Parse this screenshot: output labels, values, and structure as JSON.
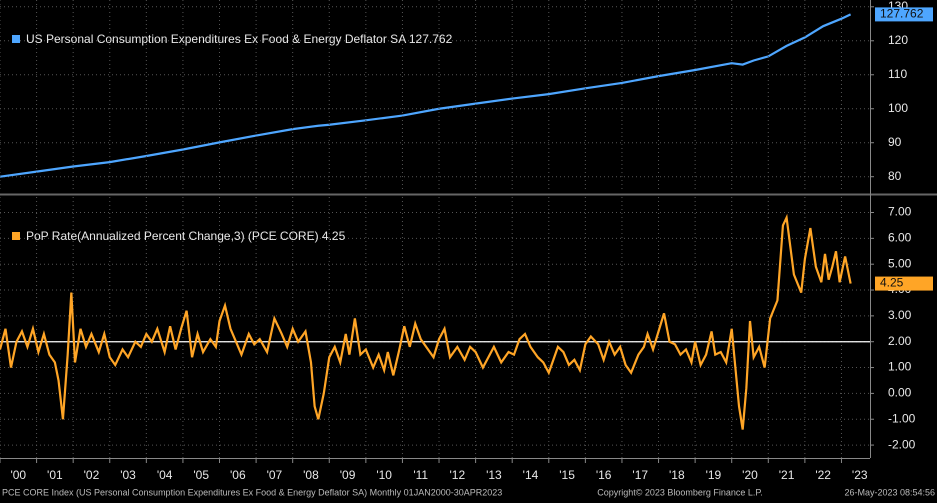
{
  "chart_data": [
    {
      "type": "line",
      "legend": "US Personal Consumption Expenditures Ex Food & Energy Deflator SA 127.762",
      "series": [
        {
          "name": "US Personal Consumption Expenditures Ex Food & Energy Deflator SA",
          "color": "#4ea6ff",
          "x": [
            2000.0,
            2001.0,
            2002.0,
            2003.0,
            2004.0,
            2005.0,
            2006.0,
            2007.0,
            2008.0,
            2008.7,
            2009.0,
            2010.0,
            2011.0,
            2012.0,
            2013.0,
            2014.0,
            2015.0,
            2016.0,
            2017.0,
            2018.0,
            2019.0,
            2020.0,
            2020.3,
            2020.6,
            2021.0,
            2021.5,
            2022.0,
            2022.5,
            2023.0,
            2023.25
          ],
          "values": [
            80.0,
            81.5,
            83.0,
            84.3,
            86.1,
            88.0,
            90.1,
            92.1,
            94.0,
            95.0,
            95.3,
            96.6,
            98.0,
            100.0,
            101.5,
            103.0,
            104.3,
            106.0,
            107.6,
            109.6,
            111.4,
            113.4,
            113.0,
            114.2,
            115.4,
            118.5,
            121.0,
            124.3,
            126.5,
            127.762
          ]
        }
      ],
      "xlim": [
        2000,
        2023.78
      ],
      "ylim": [
        75.5,
        132
      ],
      "yticks": [
        80,
        90,
        100,
        110,
        120,
        130
      ],
      "grid": true
    },
    {
      "type": "line",
      "legend": "PoP Rate(Annualized Percent Change,3) (PCE CORE) 4.25",
      "series": [
        {
          "name": "PoP Rate(Annualized Percent Change,3) (PCE CORE)",
          "color": "#ffa526",
          "x": [
            2000.0,
            2000.15,
            2000.3,
            2000.45,
            2000.6,
            2000.75,
            2000.9,
            2001.05,
            2001.2,
            2001.35,
            2001.5,
            2001.6,
            2001.72,
            2001.85,
            2001.95,
            2002.05,
            2002.2,
            2002.35,
            2002.5,
            2002.7,
            2002.85,
            2003.0,
            2003.15,
            2003.35,
            2003.5,
            2003.7,
            2003.85,
            2004.0,
            2004.15,
            2004.3,
            2004.5,
            2004.65,
            2004.8,
            2004.95,
            2005.1,
            2005.25,
            2005.4,
            2005.55,
            2005.75,
            2005.9,
            2006.0,
            2006.15,
            2006.3,
            2006.45,
            2006.6,
            2006.8,
            2006.95,
            2007.1,
            2007.3,
            2007.5,
            2007.7,
            2007.85,
            2008.0,
            2008.15,
            2008.35,
            2008.5,
            2008.6,
            2008.7,
            2008.85,
            2009.0,
            2009.15,
            2009.3,
            2009.45,
            2009.55,
            2009.7,
            2009.85,
            2010.0,
            2010.2,
            2010.35,
            2010.5,
            2010.6,
            2010.75,
            2010.9,
            2011.05,
            2011.2,
            2011.35,
            2011.5,
            2011.7,
            2011.85,
            2012.0,
            2012.15,
            2012.3,
            2012.5,
            2012.7,
            2012.85,
            2013.0,
            2013.2,
            2013.35,
            2013.5,
            2013.7,
            2013.9,
            2014.05,
            2014.2,
            2014.35,
            2014.5,
            2014.7,
            2014.85,
            2015.0,
            2015.15,
            2015.25,
            2015.4,
            2015.55,
            2015.7,
            2015.85,
            2016.0,
            2016.15,
            2016.35,
            2016.5,
            2016.65,
            2016.8,
            2016.95,
            2017.1,
            2017.25,
            2017.45,
            2017.6,
            2017.7,
            2017.85,
            2018.0,
            2018.15,
            2018.3,
            2018.45,
            2018.6,
            2018.75,
            2018.9,
            2019.0,
            2019.15,
            2019.3,
            2019.45,
            2019.55,
            2019.7,
            2019.85,
            2020.0,
            2020.1,
            2020.2,
            2020.3,
            2020.4,
            2020.5,
            2020.6,
            2020.75,
            2020.9,
            2021.05,
            2021.25,
            2021.4,
            2021.5,
            2021.7,
            2021.9,
            2022.0,
            2022.15,
            2022.3,
            2022.45,
            2022.55,
            2022.65,
            2022.75,
            2022.85,
            2022.95,
            2023.1,
            2023.25
          ],
          "values": [
            1.7,
            2.5,
            1.0,
            2.0,
            2.4,
            1.8,
            2.5,
            1.6,
            2.3,
            1.5,
            1.2,
            0.5,
            -1.0,
            1.5,
            3.9,
            1.2,
            2.5,
            1.8,
            2.3,
            1.6,
            2.3,
            1.4,
            1.1,
            1.7,
            1.4,
            2.0,
            1.8,
            2.3,
            2.0,
            2.5,
            1.6,
            2.6,
            1.7,
            2.5,
            3.2,
            1.4,
            2.3,
            1.6,
            2.1,
            1.8,
            2.8,
            3.4,
            2.5,
            2.0,
            1.5,
            2.3,
            1.9,
            2.1,
            1.6,
            2.9,
            2.3,
            1.8,
            2.5,
            2.0,
            2.4,
            1.2,
            -0.5,
            -1.0,
            0.0,
            1.4,
            1.8,
            1.2,
            2.3,
            1.5,
            2.9,
            1.5,
            1.7,
            1.0,
            1.5,
            0.9,
            1.6,
            0.7,
            1.6,
            2.6,
            1.8,
            2.7,
            2.1,
            1.7,
            1.4,
            2.1,
            2.5,
            1.4,
            1.8,
            1.3,
            1.8,
            1.6,
            1.0,
            1.4,
            1.8,
            1.2,
            1.6,
            1.5,
            2.1,
            2.3,
            1.8,
            1.4,
            1.2,
            0.8,
            1.4,
            1.8,
            1.6,
            1.1,
            1.3,
            0.9,
            1.9,
            2.2,
            1.9,
            1.3,
            2.0,
            1.5,
            1.8,
            1.1,
            0.8,
            1.5,
            1.8,
            2.3,
            1.7,
            2.4,
            3.1,
            2.0,
            1.9,
            1.5,
            1.7,
            1.2,
            2.0,
            1.1,
            1.5,
            2.4,
            1.5,
            1.6,
            1.2,
            2.5,
            1.0,
            -0.5,
            -1.4,
            0.2,
            2.8,
            1.4,
            1.8,
            1.0,
            2.9,
            3.6,
            6.5,
            6.8,
            4.6,
            3.9,
            5.2,
            6.4,
            4.9,
            4.3,
            5.4,
            4.4,
            4.9,
            5.5,
            4.3,
            5.3,
            4.25
          ]
        }
      ],
      "xlim": [
        2000,
        2023.78
      ],
      "ylim": [
        -2.5,
        7.6
      ],
      "yticks": [
        {
          "value": -2,
          "label": "-2.00"
        },
        {
          "value": -1,
          "label": "-1.00"
        },
        {
          "value": 0,
          "label": "0.00"
        },
        {
          "value": 1,
          "label": "1.00"
        },
        {
          "value": 2,
          "label": "2.00"
        },
        {
          "value": 3,
          "label": "3.00"
        },
        {
          "value": 4,
          "label": "4.00"
        },
        {
          "value": 5,
          "label": "5.00"
        },
        {
          "value": 6,
          "label": "6.00"
        },
        {
          "value": 7,
          "label": "7.00"
        }
      ],
      "hline": 2,
      "xticks": [
        {
          "value": 2000,
          "label": "'00"
        },
        {
          "value": 2001,
          "label": "'01"
        },
        {
          "value": 2002,
          "label": "'02"
        },
        {
          "value": 2003,
          "label": "'03"
        },
        {
          "value": 2004,
          "label": "'04"
        },
        {
          "value": 2005,
          "label": "'05"
        },
        {
          "value": 2006,
          "label": "'06"
        },
        {
          "value": 2007,
          "label": "'07"
        },
        {
          "value": 2008,
          "label": "'08"
        },
        {
          "value": 2009,
          "label": "'09"
        },
        {
          "value": 2010,
          "label": "'10"
        },
        {
          "value": 2011,
          "label": "'11"
        },
        {
          "value": 2012,
          "label": "'12"
        },
        {
          "value": 2013,
          "label": "'13"
        },
        {
          "value": 2014,
          "label": "'14"
        },
        {
          "value": 2015,
          "label": "'15"
        },
        {
          "value": 2016,
          "label": "'16"
        },
        {
          "value": 2017,
          "label": "'17"
        },
        {
          "value": 2018,
          "label": "'18"
        },
        {
          "value": 2019,
          "label": "'19"
        },
        {
          "value": 2020,
          "label": "'20"
        },
        {
          "value": 2021,
          "label": "'21"
        },
        {
          "value": 2022,
          "label": "'22"
        },
        {
          "value": 2023,
          "label": "'23"
        }
      ],
      "grid": true
    }
  ],
  "footer": {
    "source": "PCE CORE Index (US Personal Consumption Expenditures Ex Food & Energy Deflator SA)  Monthly 01JAN2000-30APR2023",
    "copyright": "Copyright© 2023 Bloomberg Finance L.P.",
    "date": "26-May-2023 08:54:56"
  }
}
